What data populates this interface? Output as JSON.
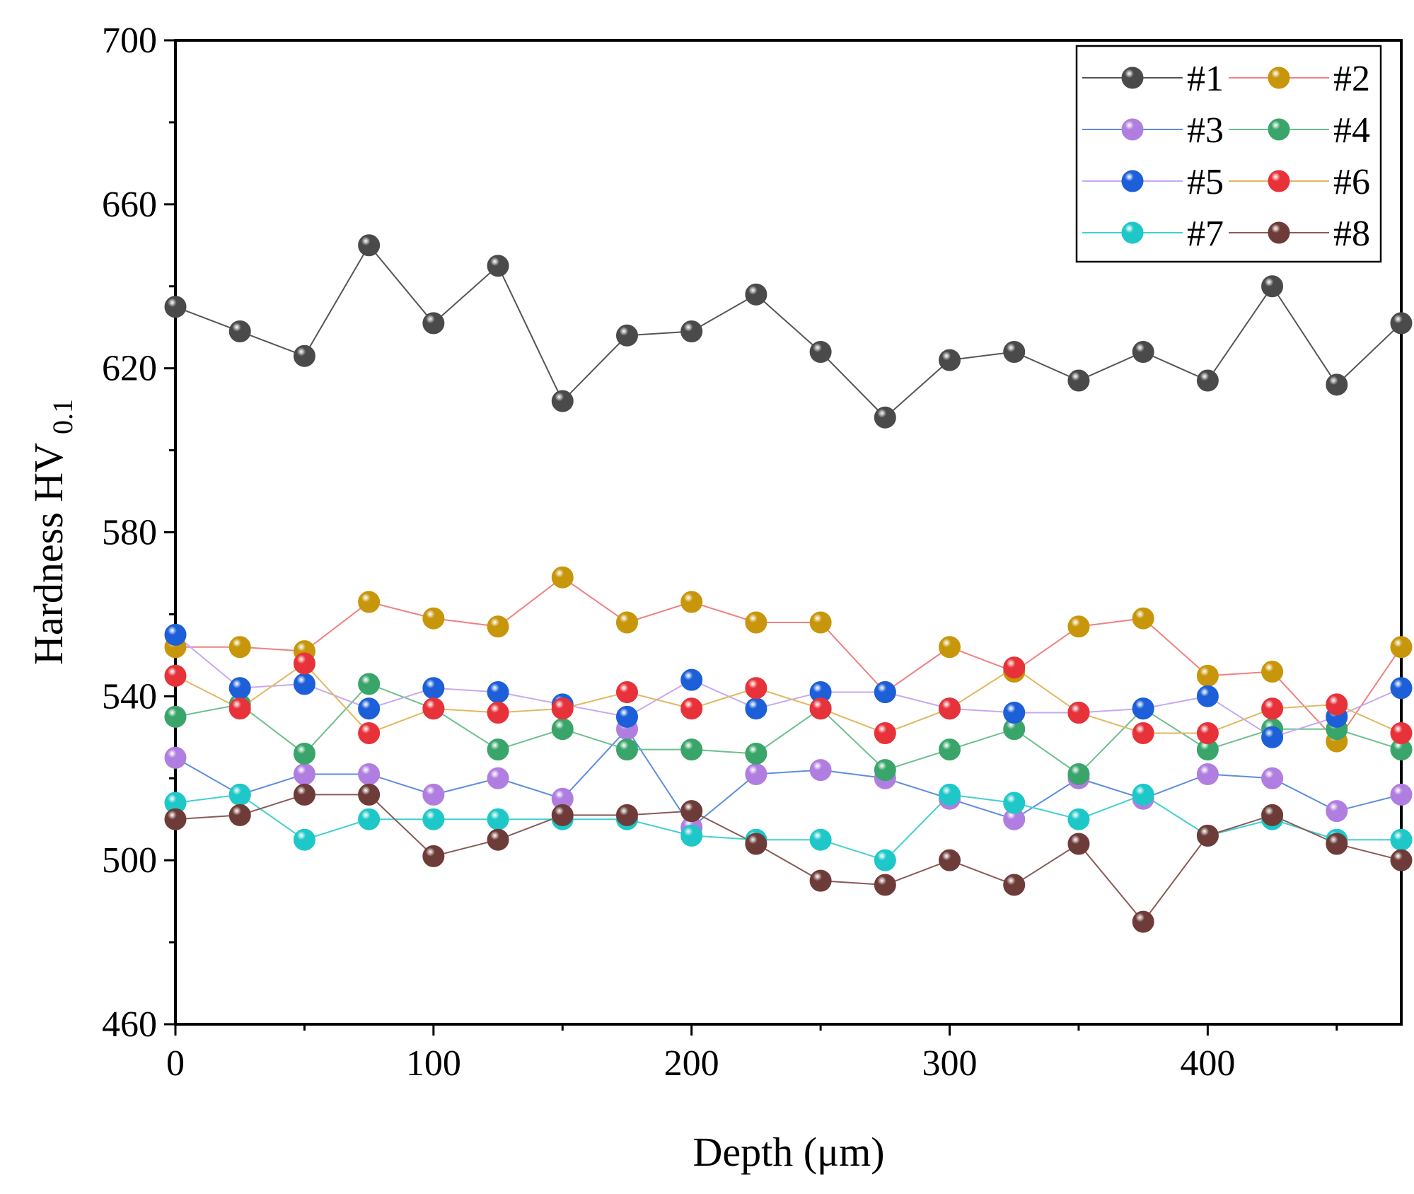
{
  "chart_data": {
    "type": "line",
    "title": "",
    "xlabel": "Depth (μm)",
    "ylabel_main": "Hardness HV",
    "ylabel_sub": "0.1",
    "xlim": [
      0,
      475
    ],
    "ylim": [
      460,
      700
    ],
    "xticks": [
      0,
      100,
      200,
      300,
      400
    ],
    "yticks": [
      460,
      500,
      540,
      580,
      620,
      660,
      700
    ],
    "xtick_labels": [
      "0",
      "100",
      "200",
      "300",
      "400"
    ],
    "ytick_labels": [
      "460",
      "500",
      "540",
      "580",
      "620",
      "660",
      "700"
    ],
    "legend_position": "top-right",
    "x": [
      0,
      25,
      50,
      75,
      100,
      125,
      150,
      175,
      200,
      225,
      250,
      275,
      300,
      325,
      350,
      375,
      400,
      425,
      450,
      475
    ],
    "series": [
      {
        "name": "#1",
        "marker_color": "#4a4a4a",
        "line_color": "#555555",
        "values": [
          635,
          629,
          623,
          650,
          631,
          645,
          612,
          628,
          629,
          638,
          624,
          608,
          622,
          624,
          617,
          624,
          617,
          640,
          616,
          631
        ]
      },
      {
        "name": "#2",
        "marker_color": "#c8960a",
        "line_color": "#f08080",
        "values": [
          552,
          552,
          551,
          563,
          559,
          557,
          569,
          558,
          563,
          558,
          558,
          541,
          552,
          546,
          557,
          559,
          545,
          546,
          529,
          552
        ]
      },
      {
        "name": "#3",
        "marker_color": "#b07ee0",
        "line_color": "#5b8de0",
        "values": [
          525,
          516,
          521,
          521,
          516,
          520,
          515,
          532,
          508,
          521,
          522,
          520,
          515,
          510,
          520,
          515,
          521,
          520,
          512,
          516
        ]
      },
      {
        "name": "#4",
        "marker_color": "#3aa56a",
        "line_color": "#6cc08c",
        "values": [
          535,
          538,
          526,
          543,
          537,
          527,
          532,
          527,
          527,
          526,
          537,
          522,
          527,
          532,
          521,
          537,
          527,
          532,
          532,
          527
        ]
      },
      {
        "name": "#5",
        "marker_color": "#1c5fd8",
        "line_color": "#c8a8f0",
        "values": [
          555,
          542,
          543,
          537,
          542,
          541,
          538,
          535,
          544,
          537,
          541,
          541,
          537,
          536,
          536,
          537,
          540,
          530,
          535,
          542
        ]
      },
      {
        "name": "#6",
        "marker_color": "#e8323a",
        "line_color": "#e0b860",
        "values": [
          545,
          537,
          548,
          531,
          537,
          536,
          537,
          541,
          537,
          542,
          537,
          531,
          537,
          547,
          536,
          531,
          531,
          537,
          538,
          531
        ]
      },
      {
        "name": "#7",
        "marker_color": "#1ec8c8",
        "line_color": "#40d0d0",
        "values": [
          514,
          516,
          505,
          510,
          510,
          510,
          510,
          510,
          506,
          505,
          505,
          500,
          516,
          514,
          510,
          516,
          506,
          510,
          505,
          505
        ]
      },
      {
        "name": "#8",
        "marker_color": "#6e3c38",
        "line_color": "#8a5a56",
        "values": [
          510,
          511,
          516,
          516,
          501,
          505,
          511,
          511,
          512,
          504,
          495,
          494,
          500,
          494,
          504,
          485,
          506,
          511,
          504,
          500
        ]
      }
    ]
  }
}
